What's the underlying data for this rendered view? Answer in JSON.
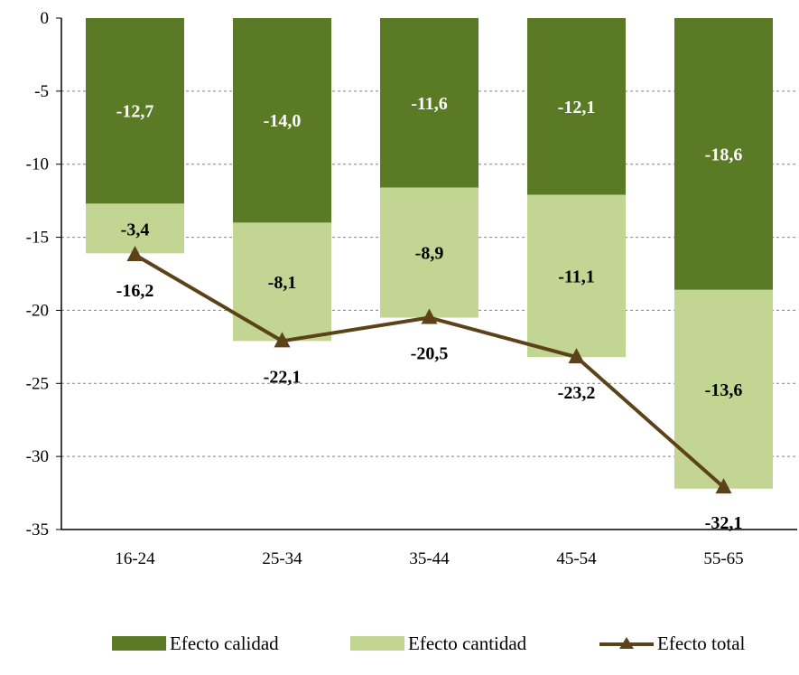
{
  "chart_data": {
    "type": "bar",
    "stacked": true,
    "categories": [
      "16-24",
      "25-34",
      "35-44",
      "45-54",
      "55-65"
    ],
    "series": [
      {
        "name": "Efecto calidad",
        "kind": "bar",
        "color": "#5a7a25",
        "label_color": "#ffffff",
        "values": [
          -12.7,
          -14.0,
          -11.6,
          -12.1,
          -18.6
        ],
        "labels": [
          "-12,7",
          "-14,0",
          "-11,6",
          "-12,1",
          "-18,6"
        ]
      },
      {
        "name": "Efecto cantidad",
        "kind": "bar",
        "color": "#c3d592",
        "label_color": "#000000",
        "values": [
          -3.4,
          -8.1,
          -8.9,
          -11.1,
          -13.6
        ],
        "labels": [
          "-3,4",
          "-8,1",
          "-8,9",
          "-11,1",
          "-13,6"
        ]
      },
      {
        "name": "Efecto total",
        "kind": "line",
        "color": "#5c4219",
        "marker": "triangle",
        "label_color": "#000000",
        "values": [
          -16.2,
          -22.1,
          -20.5,
          -23.2,
          -32.1
        ],
        "labels": [
          "-16,2",
          "-22,1",
          "-20,5",
          "-23,2",
          "-32,1"
        ]
      }
    ],
    "ylim": [
      -35,
      0
    ],
    "yticks": [
      0,
      -5,
      -10,
      -15,
      -20,
      -25,
      -30,
      -35
    ],
    "ytick_labels": [
      "0",
      "-5",
      "-10",
      "-15",
      "-20",
      "-25",
      "-30",
      "-35"
    ],
    "grid": "horizontal dashed",
    "legend_position": "bottom"
  }
}
